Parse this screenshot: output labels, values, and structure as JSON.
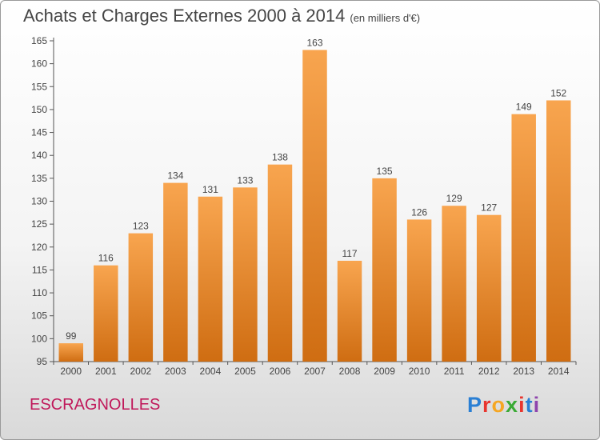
{
  "header": {
    "title": "Achats et Charges Externes 2000 à 2014",
    "subtitle": "(en milliers d'€)"
  },
  "footer": {
    "commune": "ESCRAGNOLLES",
    "logo_text": "Proxiti",
    "logo_letters": [
      "P",
      "r",
      "o",
      "x",
      "i",
      "t",
      "i"
    ],
    "logo_colors": [
      "#2a7fd4",
      "#e8352e",
      "#f5a623",
      "#3aaa35",
      "#e8352e",
      "#2a7fd4",
      "#8e44ad"
    ]
  },
  "colors": {
    "bar_top": "#f8a54f",
    "bar_bottom": "#cf6d12",
    "axis": "#555555",
    "grid": "#d9d9d9",
    "accent_commune": "#c0185a"
  },
  "chart_data": {
    "type": "bar",
    "title": "Achats et Charges Externes 2000 à 2014",
    "subtitle": "(en milliers d'€)",
    "categories": [
      "2000",
      "2001",
      "2002",
      "2003",
      "2004",
      "2005",
      "2006",
      "2007",
      "2008",
      "2009",
      "2010",
      "2011",
      "2012",
      "2013",
      "2014"
    ],
    "values": [
      99,
      116,
      123,
      134,
      131,
      133,
      138,
      163,
      117,
      135,
      126,
      129,
      127,
      149,
      152
    ],
    "ylim": [
      95,
      165
    ],
    "yticks": [
      95,
      100,
      105,
      110,
      115,
      120,
      125,
      130,
      135,
      140,
      145,
      150,
      155,
      160,
      165
    ],
    "grid": true,
    "legend": "none"
  }
}
